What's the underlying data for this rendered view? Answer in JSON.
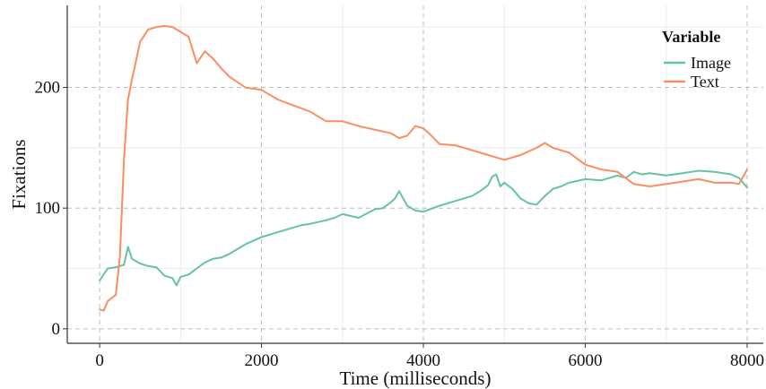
{
  "chart_data": {
    "type": "line",
    "xlabel": "Time (milliseconds)",
    "ylabel": "Fixations",
    "xlim": [
      -400,
      8200
    ],
    "ylim": [
      -12,
      268
    ],
    "x_ticks": [
      0,
      2000,
      4000,
      6000,
      8000
    ],
    "y_ticks": [
      0,
      100,
      200
    ],
    "x_tick_labels": [
      "0",
      "2000",
      "4000",
      "6000",
      "8000"
    ],
    "y_tick_labels": [
      "0",
      "100",
      "200"
    ],
    "grid": true,
    "legend": {
      "title": "Variable",
      "position": "top-right"
    },
    "series": [
      {
        "name": "Image",
        "color": "#66c2a5",
        "x": [
          0,
          100,
          200,
          300,
          350,
          400,
          500,
          600,
          700,
          800,
          900,
          950,
          1000,
          1100,
          1200,
          1300,
          1400,
          1500,
          1600,
          1700,
          1800,
          1900,
          2000,
          2200,
          2400,
          2500,
          2600,
          2800,
          2900,
          3000,
          3200,
          3400,
          3500,
          3600,
          3650,
          3700,
          3800,
          3900,
          4000,
          4200,
          4400,
          4500,
          4600,
          4700,
          4800,
          4850,
          4900,
          4950,
          5000,
          5100,
          5200,
          5300,
          5400,
          5500,
          5600,
          5700,
          5800,
          6000,
          6200,
          6400,
          6500,
          6600,
          6700,
          6800,
          7000,
          7200,
          7400,
          7600,
          7800,
          7900,
          8000
        ],
        "values": [
          40,
          50,
          51,
          53,
          68,
          58,
          54,
          52,
          51,
          44,
          42,
          36,
          43,
          45,
          50,
          55,
          58,
          59,
          62,
          66,
          70,
          73,
          76,
          80,
          84,
          86,
          87,
          90,
          92,
          95,
          92,
          99,
          100,
          105,
          108,
          114,
          102,
          98,
          97,
          102,
          106,
          108,
          110,
          114,
          119,
          126,
          128,
          118,
          121,
          116,
          108,
          104,
          103,
          110,
          116,
          118,
          121,
          124,
          123,
          127,
          125,
          130,
          128,
          129,
          127,
          129,
          131,
          130,
          128,
          125,
          117
        ]
      },
      {
        "name": "Text",
        "color": "#fc8d62",
        "x": [
          0,
          50,
          100,
          200,
          250,
          300,
          350,
          400,
          450,
          500,
          600,
          700,
          800,
          900,
          1000,
          1100,
          1200,
          1300,
          1400,
          1500,
          1600,
          1800,
          2000,
          2200,
          2400,
          2600,
          2800,
          3000,
          3200,
          3400,
          3600,
          3700,
          3800,
          3900,
          4000,
          4100,
          4200,
          4400,
          4600,
          4800,
          5000,
          5200,
          5400,
          5500,
          5600,
          5800,
          6000,
          6200,
          6400,
          6600,
          6800,
          7000,
          7200,
          7400,
          7600,
          7800,
          7900,
          8000
        ],
        "values": [
          16,
          15,
          23,
          28,
          60,
          140,
          190,
          207,
          222,
          238,
          248,
          250,
          251,
          250,
          246,
          242,
          220,
          230,
          224,
          216,
          209,
          200,
          198,
          190,
          185,
          180,
          172,
          172,
          168,
          165,
          162,
          158,
          160,
          168,
          166,
          160,
          153,
          152,
          148,
          144,
          140,
          144,
          150,
          154,
          150,
          146,
          136,
          132,
          130,
          120,
          118,
          120,
          122,
          124,
          121,
          121,
          120,
          132
        ]
      }
    ]
  }
}
